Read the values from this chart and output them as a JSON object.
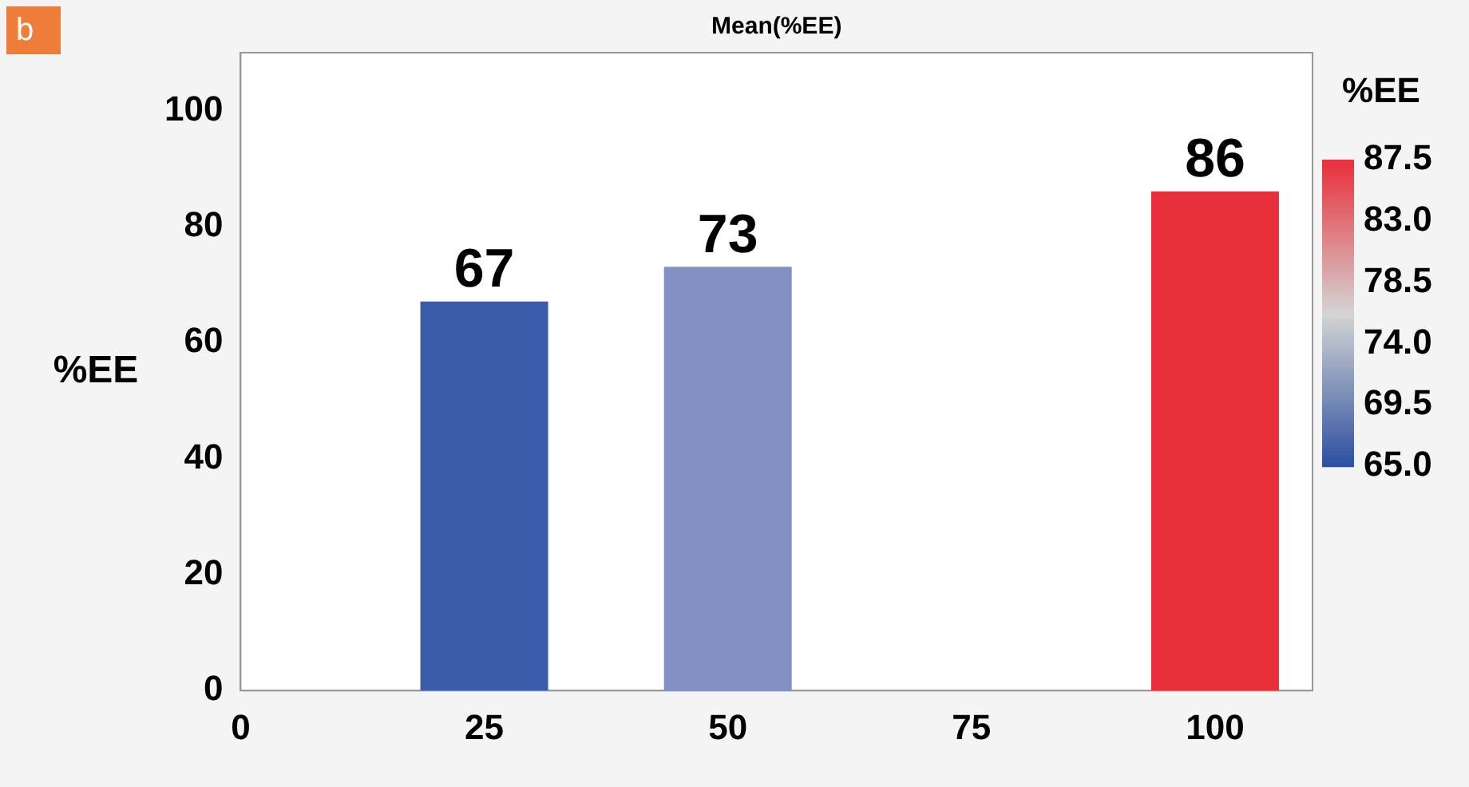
{
  "chart_data": {
    "type": "bar",
    "title": "Mean(%EE)",
    "ylabel": "%EE",
    "clabel": "%EE",
    "annotations": [
      "b"
    ],
    "x": [
      25,
      50,
      100
    ],
    "values": [
      67,
      73,
      86
    ],
    "colors": [
      "#3a5ba8",
      "#8290c4",
      "#e8303a"
    ],
    "data_labels": true,
    "xlim": [
      0,
      110
    ],
    "xticks": [
      0,
      25,
      50,
      75,
      100
    ],
    "ylim": [
      0,
      110
    ],
    "yticks": [
      0,
      20,
      40,
      60,
      80,
      100
    ],
    "clim": [
      65,
      87.5
    ],
    "cticks": [
      {
        "value": 65,
        "label": "65.0"
      },
      69.5,
      {
        "value": 74,
        "label": "74.0"
      },
      78.5,
      {
        "value": 83,
        "label": "83.0"
      },
      87.5
    ],
    "grid": false,
    "legend": false
  }
}
